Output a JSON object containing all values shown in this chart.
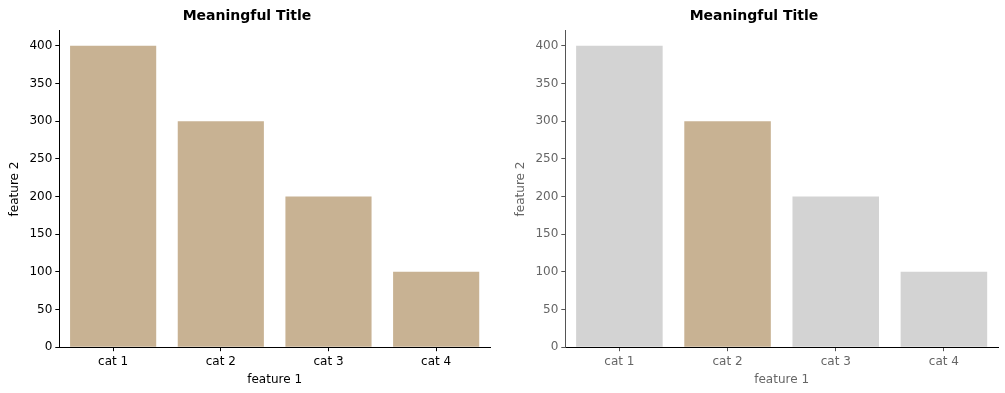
{
  "chart_data": [
    {
      "type": "bar",
      "title": "Meaningful Title",
      "xlabel": "feature 1",
      "ylabel": "feature 2",
      "categories": [
        "cat 1",
        "cat 2",
        "cat 3",
        "cat 4"
      ],
      "values": [
        400,
        300,
        200,
        100
      ],
      "color": "#c8b293",
      "ylim": [
        0,
        420
      ],
      "yticks": [
        0,
        50,
        100,
        150,
        200,
        250,
        300,
        350,
        400
      ],
      "grid": false,
      "legend": false
    },
    {
      "type": "bar",
      "title": "Meaningful Title",
      "xlabel": "feature 1",
      "ylabel": "feature 2",
      "categories": [
        "cat 1",
        "cat 2",
        "cat 3",
        "cat 4"
      ],
      "values": [
        400,
        300,
        200,
        100
      ],
      "colors": [
        "#d3d3d3",
        "#c8b293",
        "#d3d3d3",
        "#d3d3d3"
      ],
      "ylim": [
        0,
        420
      ],
      "yticks": [
        0,
        50,
        100,
        150,
        200,
        250,
        300,
        350,
        400
      ],
      "grid": false,
      "legend": false
    }
  ]
}
